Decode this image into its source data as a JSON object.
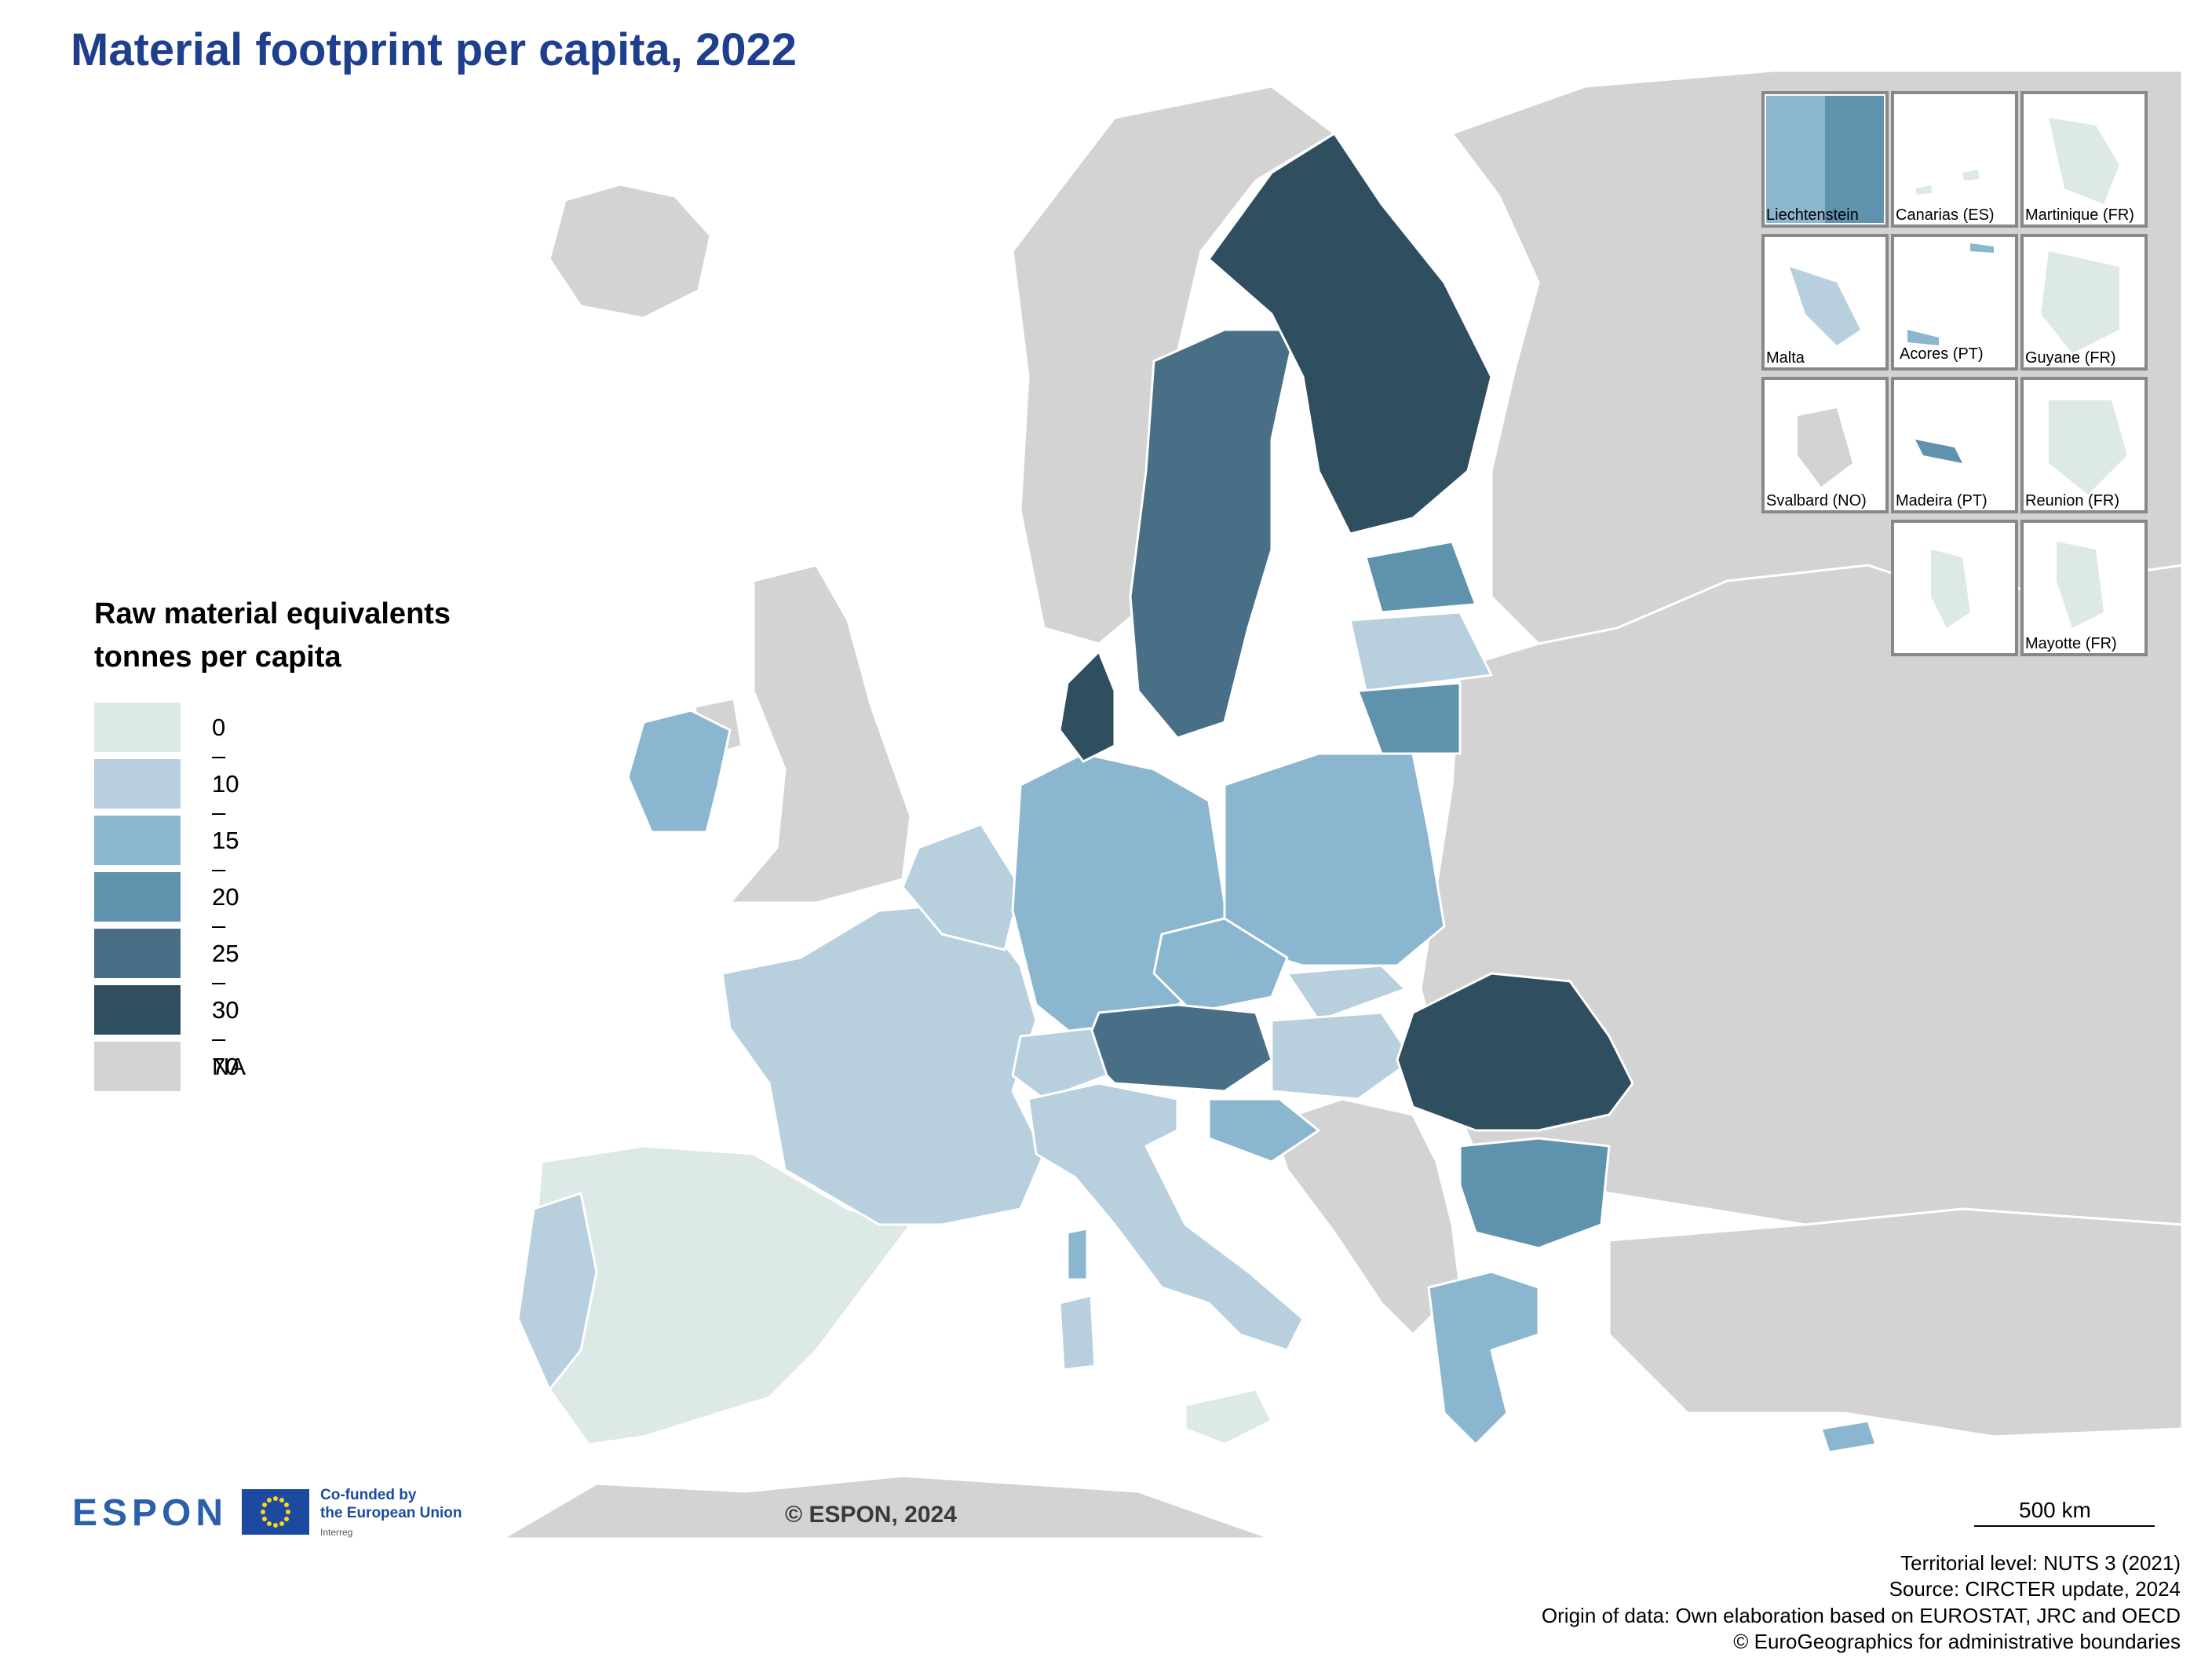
{
  "title": "Material footprint per capita, 2022",
  "legend": {
    "title_line1": "Raw material equivalents",
    "title_line2": "tonnes per capita",
    "classes": [
      {
        "label": "0 – 10",
        "color": "#dde9e7"
      },
      {
        "label": "10 – 15",
        "color": "#b8cfdd"
      },
      {
        "label": "15 – 20",
        "color": "#8ab6cf"
      },
      {
        "label": "20 – 25",
        "color": "#5f92ad"
      },
      {
        "label": "25 – 30",
        "color": "#486f85"
      },
      {
        "label": "30 – 70",
        "color": "#2f4e5f"
      },
      {
        "label": "NA",
        "color": "#d3d3d3"
      }
    ]
  },
  "insets": [
    "Liechtenstein",
    "Canarias (ES)",
    "Martinique (FR)",
    "Malta",
    "Acores (PT)",
    "Guyane (FR)",
    "Svalbard (NO)",
    "Madeira (PT)",
    "Reunion (FR)",
    "Mayotte (FR)"
  ],
  "branding": {
    "espon": "ESPON",
    "cofunded_line1": "Co-funded by",
    "cofunded_line2": "the European Union",
    "interreg": "Interreg"
  },
  "copyright": "© ESPON, 2024",
  "scale_label": "500 km",
  "footer": {
    "level": "Territorial level: NUTS 3 (2021)",
    "source": "Source: CIRCTER update, 2024",
    "origin": "Origin of data: Own elaboration based on EUROSTAT, JRC and OECD",
    "boundaries": "© EuroGeographics for administrative boundaries"
  },
  "colors": {
    "title": "#1f3f8e",
    "sea": "#ffffff",
    "land_na": "#d3d3d3",
    "border": "#ffffff"
  }
}
